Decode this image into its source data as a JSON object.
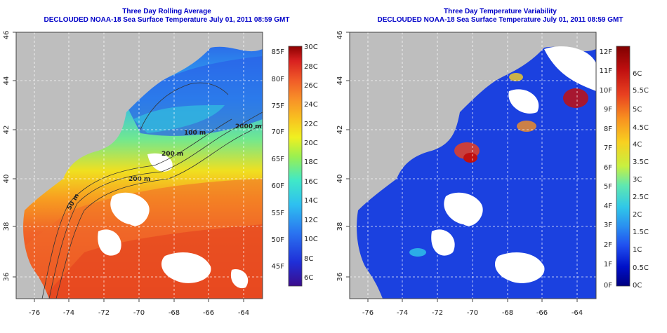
{
  "left": {
    "title1": "Three Day Rolling Average",
    "title2": "DECLOUDED NOAA-18 Sea Surface Temperature July 01, 2011 08:59 GMT",
    "x_ticks": [
      "-76",
      "-74",
      "-72",
      "-70",
      "-68",
      "-66",
      "-64"
    ],
    "y_ticks": [
      "36",
      "38",
      "40",
      "42",
      "44",
      "46"
    ],
    "colorbar_f": [
      "85F",
      "80F",
      "75F",
      "70F",
      "65F",
      "60F",
      "55F",
      "50F",
      "45F"
    ],
    "colorbar_c": [
      "30C",
      "28C",
      "26C",
      "24C",
      "22C",
      "20C",
      "18C",
      "16C",
      "14C",
      "12C",
      "10C",
      "8C",
      "6C"
    ],
    "contour_labels": [
      "100 m",
      "200 m",
      "50 m",
      "2000 m",
      "200 m"
    ]
  },
  "right": {
    "title1": "Three Day Temperature Variability",
    "title2": "DECLOUDED NOAA-18 Sea Surface Temperature July 01, 2011 08:59 GMT",
    "x_ticks": [
      "-76",
      "-74",
      "-72",
      "-70",
      "-68",
      "-66",
      "-64"
    ],
    "y_ticks": [
      "36",
      "38",
      "40",
      "42",
      "44",
      "46"
    ],
    "colorbar_f": [
      "12F",
      "11F",
      "10F",
      "9F",
      "8F",
      "7F",
      "6F",
      "5F",
      "4F",
      "3F",
      "2F",
      "1F",
      "0F"
    ],
    "colorbar_c": [
      "6C",
      "5.5C",
      "5C",
      "4.5C",
      "4C",
      "3.5C",
      "3C",
      "2.5C",
      "2C",
      "1.5C",
      "1C",
      "0.5C",
      "0C"
    ]
  },
  "colors": {
    "land": "#bebebe",
    "cloud": "#ffffff",
    "title": "#0000c8",
    "sst_scale": [
      "#3b0c8c",
      "#1f2fd8",
      "#2a73f0",
      "#2ec0f0",
      "#40e8c8",
      "#9af050",
      "#f0f020",
      "#f8c020",
      "#f89028",
      "#f05a28",
      "#d82020",
      "#8c0000"
    ],
    "var_scale": [
      "#000080",
      "#0010c8",
      "#2050f0",
      "#2a90f0",
      "#30c8e8",
      "#60e8b0",
      "#c8f040",
      "#f8d020",
      "#f89020",
      "#e84020",
      "#c01010",
      "#800000"
    ]
  }
}
